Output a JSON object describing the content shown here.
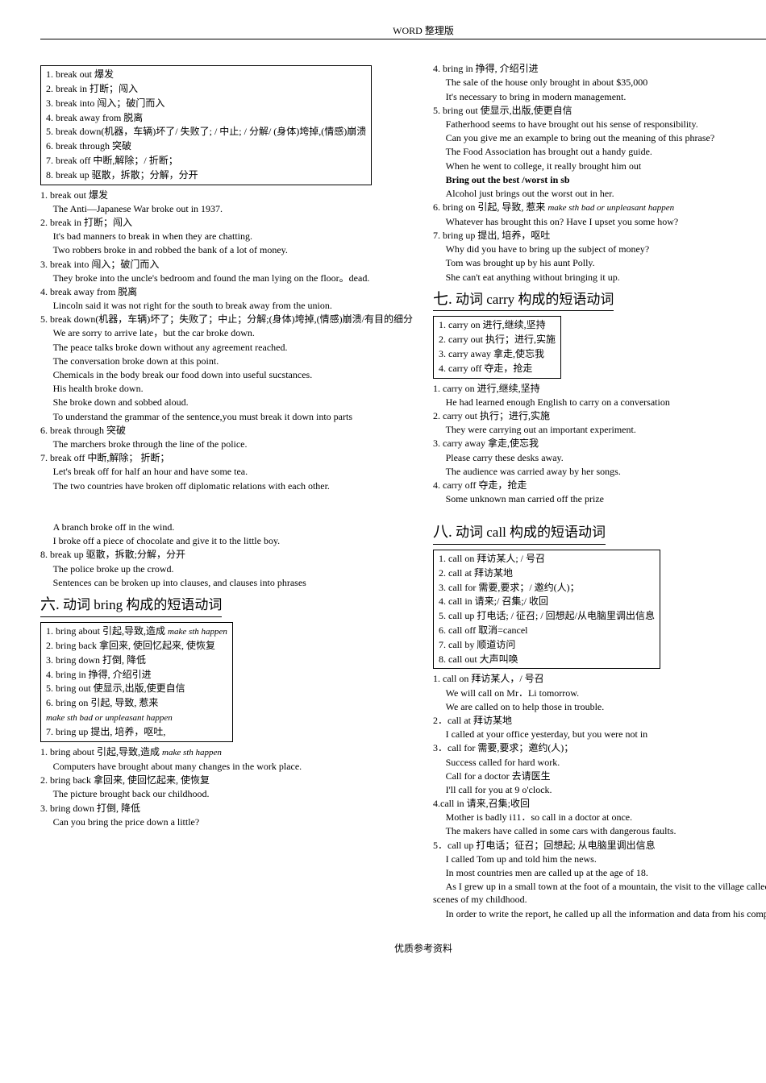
{
  "header": "WORD 整理版",
  "footer": "优质参考资料",
  "colA_box1": [
    "1. break out 爆发",
    "2. break in 打断；闯入",
    "3. break into 闯入；破门而入",
    "4. break away from 脱离",
    "5. break down(机器，车辆)坏了/ 失败了; / 中止; / 分解/ (身体)垮掉,(情感)崩溃",
    "6. break through 突破",
    "7. break off 中断,解除；/ 折断；",
    "8. break up 驱散，拆散；分解，分开"
  ],
  "colA_body1": [
    "1. break out 爆发",
    {
      "indent": true,
      "text": "The Anti—Japanese War broke out in 1937."
    },
    "2. break in 打断；闯入",
    {
      "indent": true,
      "text": "It's bad manners to break in when they are chatting."
    },
    {
      "indent": true,
      "text": "Two robbers broke in and robbed the bank of a lot of money."
    },
    "3. break into 闯入；破门而入",
    {
      "indent": true,
      "text": "They broke into the uncle's bedroom and found the man lying on the floor。dead."
    },
    "4. break away from 脱离",
    {
      "indent": true,
      "text": "Lincoln said it was not right for the south to break away from the union."
    },
    "5. break down(机器，车辆)坏了；失败了；中止；分解;(身体)垮掉,(情感)崩溃/有目的细分",
    {
      "indent": true,
      "text": "We are sorry to arrive late，but the car broke down."
    },
    {
      "indent": true,
      "text": "The peace talks broke down without any agreement reached."
    },
    {
      "indent": true,
      "text": "The conversation broke down at this point."
    },
    {
      "indent": true,
      "text": "Chemicals in the body break our food down into useful sucstances."
    },
    {
      "indent": true,
      "text": "His health broke down."
    },
    {
      "indent": true,
      "text": "She broke down and sobbed aloud."
    },
    {
      "indent": true,
      "text": "To understand the grammar of the sentence,you must break it down into parts"
    },
    "6. break through 突破",
    {
      "indent": true,
      "text": "The marchers broke through the line of the police."
    },
    "7. break off 中断,解除； 折断；",
    {
      "indent": true,
      "text": "Let's break off for half an hour and have some tea."
    },
    {
      "indent": true,
      "text": "The two countries have broken off diplomatic relations with each other."
    },
    "",
    "",
    {
      "indent": true,
      "text": "A branch broke off in the wind."
    },
    {
      "indent": true,
      "text": "I broke off a piece of chocolate and give it to the little boy."
    },
    "8. break up 驱散，拆散;分解，分开",
    {
      "indent": true,
      "text": "The police broke up the crowd."
    },
    {
      "indent": true,
      "text": "Sentences can be broken up into clauses, and clauses into phrases"
    }
  ],
  "section6_title_num": "六.",
  "section6_title_text": "动词 bring 构成的短语动词",
  "colA_box2": [
    "1. bring about 引起,导致,造成 make sth happen",
    "2. bring back  拿回来, 使回忆起来, 使恢复",
    "3. bring down  打倒, 降低",
    "4. bring in   挣得, 介绍引进",
    "5. bring out  使显示,出版,使更自信",
    "6. bring on  引起, 导致, 惹来",
    "                     make sth bad or unpleasant happen",
    "7. bring up   提出, 培养，呕吐,"
  ],
  "colA_body2": [
    "1. bring about 引起,导致,造成 make sth happen",
    {
      "indent": true,
      "text": "Computers have brought about many changes in the work place."
    },
    "2. bring back  拿回来, 使回忆起来, 使恢复",
    {
      "indent": true,
      "text": "The picture brought back our childhood."
    },
    "3. bring down  打倒, 降低",
    {
      "indent": true,
      "text": "Can you bring the price down a little?"
    }
  ],
  "colB_body1": [
    "4. bring in   挣得, 介绍引进",
    {
      "indent": true,
      "text": "The sale of the house only brought in about $35,000"
    },
    {
      "indent": true,
      "text": "It's necessary to bring in modern management."
    },
    "5. bring out  使显示,出版,使更自信",
    {
      "indent": true,
      "text": "Fatherhood seems to have brought out his sense of responsibility."
    },
    {
      "indent": true,
      "text": "Can you give me an example to bring out the meaning of this phrase?"
    },
    {
      "indent": true,
      "text": "The Food Association has brought out a handy guide."
    },
    {
      "indent": true,
      "text": "When he went to college, it really brought him out"
    },
    {
      "indent": true,
      "bold": true,
      "text": "Bring out the best /worst in sb"
    },
    {
      "indent": true,
      "text": "Alcohol just brings out the worst out in her."
    },
    "6. bring on  引起, 导致, 惹来 make sth bad or unpleasant happen",
    {
      "indent": true,
      "text": "Whatever has brought this on? Have I upset you some how?"
    },
    "7. bring up   提出, 培养，呕吐",
    {
      "indent": true,
      "text": "Why did you have to bring up the subject of money?"
    },
    {
      "indent": true,
      "text": "Tom was brought up by his aunt Polly."
    },
    {
      "indent": true,
      "text": "She can't eat anything without bringing it up."
    }
  ],
  "section7_title_num": "七.",
  "section7_title_text": "动词 carry 构成的短语动词",
  "colB_box1": [
    "1. carry on 进行,继续,坚持",
    "2. carry out 执行；进行,实施",
    "3. carry away 拿走,使忘我",
    "4. carry off 夺走，抢走"
  ],
  "colB_body2": [
    "1. carry on 进行,继续,坚持",
    {
      "indent": true,
      "text": "He had learned enough English to carry on a conversation"
    },
    "2. carry out 执行；进行,实施",
    {
      "indent": true,
      "text": "They were carrying out an important experiment."
    },
    "3. carry away 拿走,使忘我",
    {
      "indent": true,
      "text": "Please carry these desks away."
    },
    {
      "indent": true,
      "text": "The audience was carried away by her songs."
    },
    "4. carry off 夺走，抢走",
    {
      "indent": true,
      "text": "   Some unknown man carried off the prize"
    }
  ],
  "section8_title_num": "八.",
  "section8_title_text": "动词 call 构成的短语动词",
  "colB_box2": [
    "1. call on 拜访某人; / 号召",
    "2. call at 拜访某地",
    "3. call for 需要,要求；/ 邀约(人)；",
    "4. call in 请来;/ 召集;/ 收回",
    "5. call up 打电话; / 征召; / 回想起/从电脑里调出信息",
    "6. call off 取消=cancel",
    "7. call by   顺道访问",
    "8. call out   大声叫唤"
  ],
  "colB_body3": [
    "1. call on 拜访某人，/ 号召",
    {
      "indent": true,
      "text": " We will call on Mr．Li tomorrow."
    },
    {
      "indent": true,
      "text": " We are called on to help those in trouble."
    },
    "2．call at 拜访某地",
    {
      "indent": true,
      "text": "I called at your office yesterday, but you were not in"
    },
    "3．call for 需要,要求；邀约(人)；",
    {
      "indent": true,
      "text": "Success called for hard work."
    },
    {
      "indent": true,
      "text": "Call for a doctor 去请医生"
    },
    {
      "indent": true,
      "text": "I'll call for you at 9 o'clock."
    },
    "4.call in 请来,召集;收回",
    {
      "indent": true,
      "text": "Mother is badly i11．so call in a doctor at once."
    },
    {
      "indent": true,
      "text": "The makers have called in some cars with dangerous faults."
    },
    "5．call up 打电话；征召；回想起; 从电脑里调出信息",
    {
      "indent": true,
      "text": "I called Tom up and told him the news."
    },
    {
      "indent": true,
      "text": "In most countries men are called up at the age of 18."
    },
    {
      "indent": true,
      "text": "As I grew up in a small town at the foot of a mountain, the visit to the village called up scenes of my childhood."
    },
    {
      "indent": true,
      "text": "   In order to write the report, he called up all the information and data from his computer."
    }
  ]
}
